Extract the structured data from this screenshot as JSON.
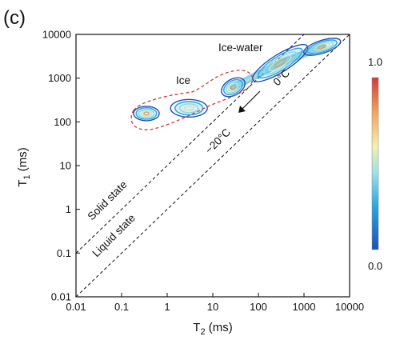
{
  "panel_label": "(c)",
  "chart_data": {
    "type": "heatmap",
    "xlabel_main": "T",
    "xlabel_sub": "2",
    "xlabel_unit": " (ms)",
    "ylabel_main": "T",
    "ylabel_sub": "1",
    "ylabel_unit": " (ms)",
    "xscale": "log",
    "yscale": "log",
    "xlim": [
      0.01,
      10000
    ],
    "ylim": [
      0.01,
      10000
    ],
    "x_ticks": [
      "0.01",
      "0.1",
      "1",
      "10",
      "100",
      "1000",
      "10000"
    ],
    "y_ticks": [
      "0.01",
      "0.1",
      "1",
      "10",
      "100",
      "1000",
      "10000"
    ],
    "grid": false,
    "colorbar": {
      "min_label": "0.0",
      "max_label": "1.0",
      "colors": [
        "#1f4fb5",
        "#2aa6e0",
        "#9fe3e6",
        "#f4f0b0",
        "#f2a45c",
        "#d23a3a"
      ]
    },
    "lines": [
      {
        "name": "Solid state",
        "x": [
          0.01,
          1000
        ],
        "y": [
          0.1,
          10000
        ]
      },
      {
        "name": "Liquid state",
        "x": [
          0.01,
          10000
        ],
        "y": [
          0.01,
          10000
        ]
      }
    ],
    "clusters": [
      {
        "t2": 0.35,
        "t1": 155,
        "intensity": 0.75
      },
      {
        "t2": 3.0,
        "t1": 205,
        "intensity": 0.6
      },
      {
        "t2": 28,
        "t1": 620,
        "intensity": 0.9
      },
      {
        "t2": 300,
        "t1": 2200,
        "intensity": 0.8
      },
      {
        "t2": 2500,
        "t1": 5200,
        "intensity": 0.85
      }
    ],
    "annotations": {
      "ice": "Ice",
      "ice_water": "Ice-water",
      "zero_c": "0°C",
      "minus20_c": "−20°C",
      "solid_state": "Solid state",
      "liquid_state": "Liquid state"
    }
  }
}
